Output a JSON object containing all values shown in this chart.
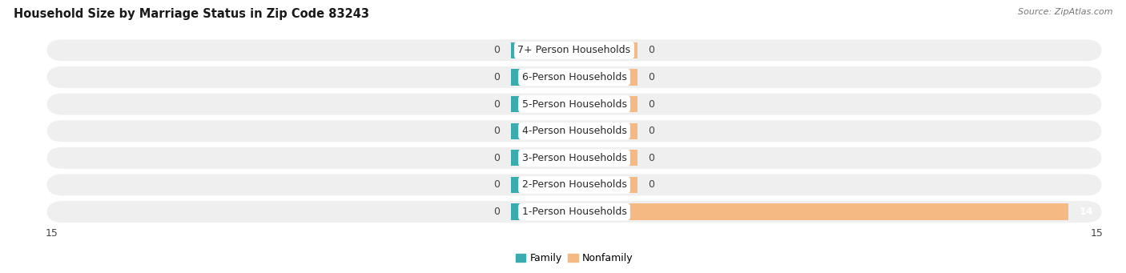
{
  "title": "Household Size by Marriage Status in Zip Code 83243",
  "source_text": "Source: ZipAtlas.com",
  "categories": [
    "7+ Person Households",
    "6-Person Households",
    "5-Person Households",
    "4-Person Households",
    "3-Person Households",
    "2-Person Households",
    "1-Person Households"
  ],
  "family_values": [
    0,
    0,
    0,
    0,
    0,
    0,
    0
  ],
  "nonfamily_values": [
    0,
    0,
    0,
    0,
    0,
    0,
    14
  ],
  "family_color": "#3AACB0",
  "nonfamily_color": "#F5B984",
  "xlim_left": -15,
  "xlim_right": 15,
  "row_bg_color": "#EFEFEF",
  "bar_stub": 1.8,
  "legend_family": "Family",
  "legend_nonfamily": "Nonfamily",
  "title_fontsize": 10.5,
  "label_fontsize": 9,
  "tick_fontsize": 9,
  "source_fontsize": 8
}
